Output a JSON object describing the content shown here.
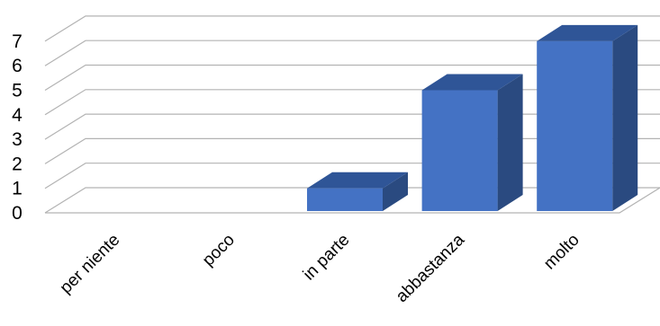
{
  "chart_data": {
    "type": "bar",
    "style": "3d-column",
    "categories": [
      "per niente",
      "poco",
      "in parte",
      "abbastanza",
      "molto"
    ],
    "values": [
      0,
      0,
      1,
      5,
      7
    ],
    "title": "",
    "xlabel": "",
    "ylabel": "",
    "ylim": [
      0,
      7
    ],
    "yticks": [
      0,
      1,
      2,
      3,
      4,
      5,
      6,
      7
    ],
    "grid": true,
    "legend": "none",
    "colors": {
      "front": "#4472c4",
      "top": "#2f5597",
      "side": "#2a4a80",
      "grid": "#b3b3b3"
    }
  }
}
